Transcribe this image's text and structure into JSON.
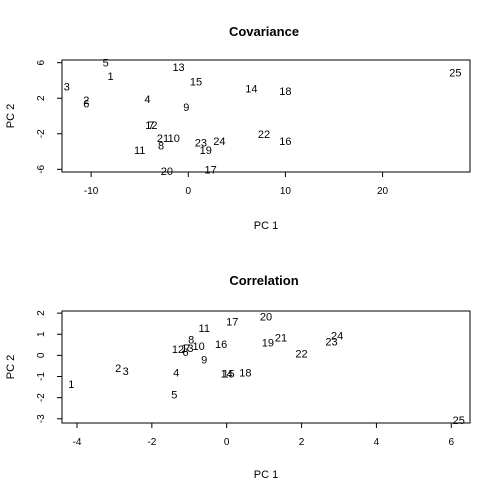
{
  "chart_data": [
    {
      "type": "scatter",
      "title": "Covariance",
      "xlabel": "PC 1",
      "ylabel": "PC 2",
      "xlim": [
        -13.0,
        29.0
      ],
      "ylim": [
        -6.3,
        6.3
      ],
      "xticks": [
        -10,
        0,
        10,
        20
      ],
      "yticks": [
        -6,
        -2,
        2,
        6
      ],
      "xtick_labels": [
        "-10",
        "0",
        "10",
        "20"
      ],
      "ytick_labels": [
        "-6",
        "-2",
        "2",
        "6"
      ],
      "grid": false,
      "points": [
        {
          "label": "1",
          "x": -8.0,
          "y": 4.5
        },
        {
          "label": "2",
          "x": -10.5,
          "y": 1.8
        },
        {
          "label": "3",
          "x": -12.5,
          "y": 3.3
        },
        {
          "label": "4",
          "x": -4.2,
          "y": 1.9
        },
        {
          "label": "5",
          "x": -8.5,
          "y": 6.0
        },
        {
          "label": "6",
          "x": -10.5,
          "y": 1.4
        },
        {
          "label": "7",
          "x": -3.8,
          "y": -1.0
        },
        {
          "label": "8",
          "x": -2.8,
          "y": -3.3
        },
        {
          "label": "9",
          "x": -0.2,
          "y": 1.0
        },
        {
          "label": "10",
          "x": -1.5,
          "y": -2.5
        },
        {
          "label": "11",
          "x": -5.0,
          "y": -3.8
        },
        {
          "label": "12",
          "x": -3.8,
          "y": -1.0
        },
        {
          "label": "13",
          "x": -1.0,
          "y": 5.5
        },
        {
          "label": "14",
          "x": 6.5,
          "y": 3.1
        },
        {
          "label": "15",
          "x": 0.8,
          "y": 3.9
        },
        {
          "label": "16",
          "x": 10.0,
          "y": -2.8
        },
        {
          "label": "17",
          "x": 2.3,
          "y": -6.0
        },
        {
          "label": "18",
          "x": 10.0,
          "y": 2.8
        },
        {
          "label": "19",
          "x": 1.8,
          "y": -3.8
        },
        {
          "label": "20",
          "x": -2.2,
          "y": -6.2
        },
        {
          "label": "21",
          "x": -2.6,
          "y": -2.5
        },
        {
          "label": "22",
          "x": 7.8,
          "y": -2.0
        },
        {
          "label": "23",
          "x": 1.3,
          "y": -3.0
        },
        {
          "label": "24",
          "x": 3.2,
          "y": -2.8
        },
        {
          "label": "25",
          "x": 27.5,
          "y": 4.9
        }
      ]
    },
    {
      "type": "scatter",
      "title": "Correlation",
      "xlabel": "PC 1",
      "ylabel": "PC 2",
      "xlim": [
        -4.4,
        6.5
      ],
      "ylim": [
        -3.2,
        2.1
      ],
      "xticks": [
        -4,
        -2,
        0,
        2,
        4,
        6
      ],
      "yticks": [
        -3,
        -2,
        -1,
        0,
        1,
        2
      ],
      "xtick_labels": [
        "-4",
        "-2",
        "0",
        "2",
        "4",
        "6"
      ],
      "ytick_labels": [
        "-3",
        "-2",
        "-1",
        "0",
        "1",
        "2"
      ],
      "grid": false,
      "points": [
        {
          "label": "1",
          "x": -4.15,
          "y": -1.35
        },
        {
          "label": "2",
          "x": -2.9,
          "y": -0.6
        },
        {
          "label": "3",
          "x": -2.7,
          "y": -0.75
        },
        {
          "label": "4",
          "x": -1.35,
          "y": -0.8
        },
        {
          "label": "5",
          "x": -1.4,
          "y": -1.85
        },
        {
          "label": "6",
          "x": -1.1,
          "y": 0.15
        },
        {
          "label": "7",
          "x": -1.05,
          "y": 0.35
        },
        {
          "label": "8",
          "x": -0.95,
          "y": 0.75
        },
        {
          "label": "9",
          "x": -0.6,
          "y": -0.2
        },
        {
          "label": "10",
          "x": -0.75,
          "y": 0.45
        },
        {
          "label": "11",
          "x": -0.6,
          "y": 1.3
        },
        {
          "label": "12",
          "x": -1.3,
          "y": 0.3
        },
        {
          "label": "13",
          "x": -1.05,
          "y": 0.35
        },
        {
          "label": "14",
          "x": 0.0,
          "y": -0.85
        },
        {
          "label": "15",
          "x": 0.05,
          "y": -0.85
        },
        {
          "label": "16",
          "x": -0.15,
          "y": 0.55
        },
        {
          "label": "17",
          "x": 0.15,
          "y": 1.6
        },
        {
          "label": "18",
          "x": 0.5,
          "y": -0.8
        },
        {
          "label": "19",
          "x": 1.1,
          "y": 0.6
        },
        {
          "label": "20",
          "x": 1.05,
          "y": 1.85
        },
        {
          "label": "21",
          "x": 1.45,
          "y": 0.85
        },
        {
          "label": "22",
          "x": 2.0,
          "y": 0.1
        },
        {
          "label": "23",
          "x": 2.8,
          "y": 0.65
        },
        {
          "label": "24",
          "x": 2.95,
          "y": 0.95
        },
        {
          "label": "25",
          "x": 6.2,
          "y": -3.05
        }
      ]
    }
  ]
}
